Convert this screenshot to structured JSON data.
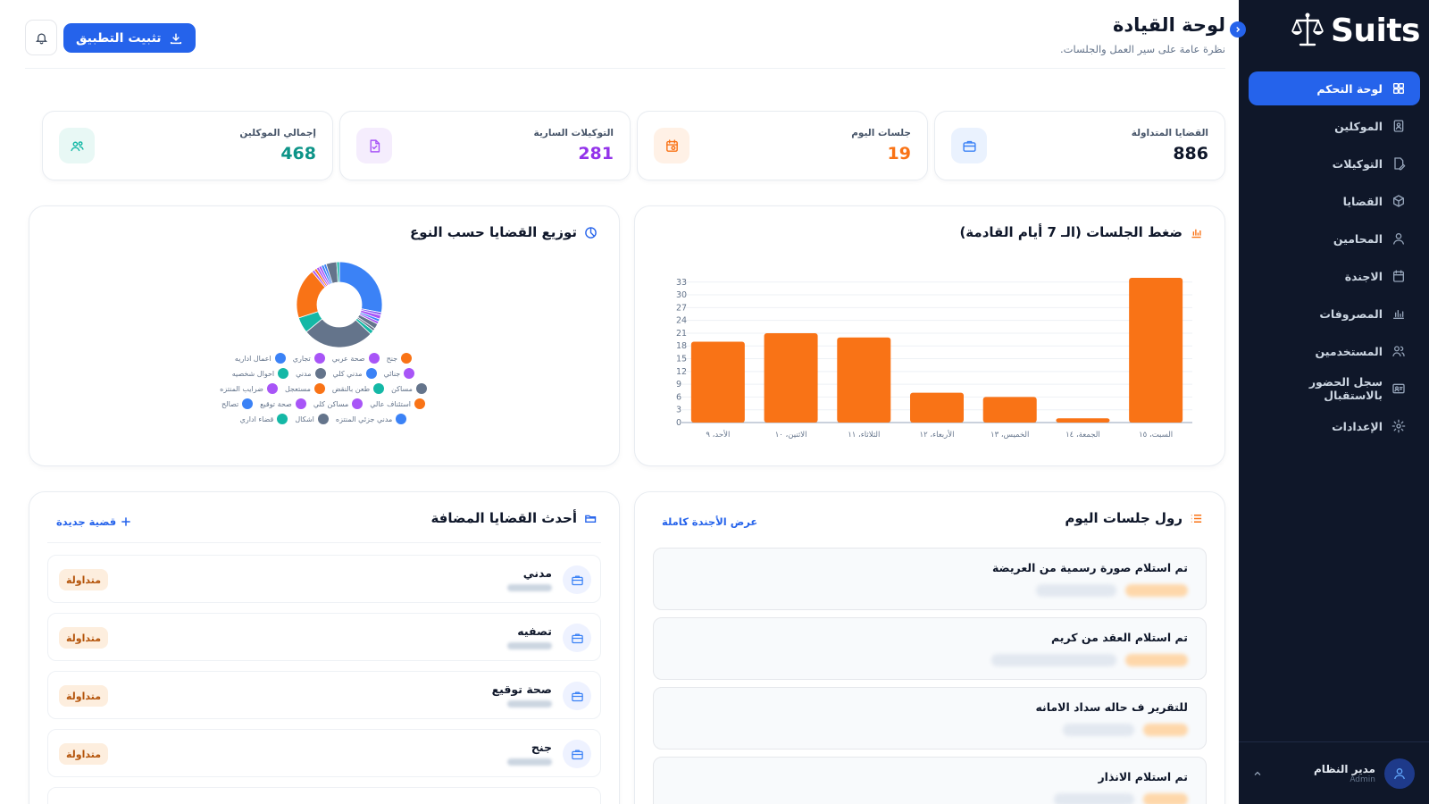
{
  "brand": {
    "name": "Suits"
  },
  "sidebar": {
    "items": [
      {
        "label": "لوحة التحكم",
        "icon": "dashboard-icon",
        "active": true
      },
      {
        "label": "الموكلين",
        "icon": "clients-icon"
      },
      {
        "label": "التوكيلات",
        "icon": "power-of-attorney-icon"
      },
      {
        "label": "القضايا",
        "icon": "cases-icon"
      },
      {
        "label": "المحامين",
        "icon": "lawyer-icon"
      },
      {
        "label": "الاجندة",
        "icon": "calendar-icon"
      },
      {
        "label": "المصروفات",
        "icon": "expenses-chart-icon"
      },
      {
        "label": "المستخدمين",
        "icon": "users-icon"
      },
      {
        "label": "سجل الحضور بالاستقبال",
        "icon": "attendance-icon"
      },
      {
        "label": "الإعدادات",
        "icon": "settings-gear-icon"
      }
    ],
    "user": {
      "name": "مدير النظام",
      "role": "Admin"
    }
  },
  "header": {
    "title": "لوحة القيادة",
    "subtitle": "نظرة عامة على سير العمل والجلسات.",
    "install_label": "تثبيت التطبيق"
  },
  "stats": [
    {
      "label": "القضايا المتداولة",
      "value": "886",
      "color": "#0f172a",
      "icon": "briefcase-icon",
      "icon_bg": "#eaf2fe",
      "icon_color": "#3b82f6"
    },
    {
      "label": "جلسات اليوم",
      "value": "19",
      "color": "#f97316",
      "icon": "calendar-clock-icon",
      "icon_bg": "#fff1e6",
      "icon_color": "#f97316"
    },
    {
      "label": "التوكيلات السارية",
      "value": "281",
      "color": "#9333ea",
      "icon": "document-icon",
      "icon_bg": "#f5edfd",
      "icon_color": "#a855f7"
    },
    {
      "label": "إجمالي الموكلين",
      "value": "468",
      "color": "#0d9488",
      "icon": "clients-group-icon",
      "icon_bg": "#e8f8f5",
      "icon_color": "#14b8a6"
    }
  ],
  "sessions_chart": {
    "title": "ضغط الجلسات (الـ 7 أيام القادمة)"
  },
  "types_chart": {
    "title": "توزيع القضايا حسب النوع"
  },
  "today_sessions": {
    "title": "رول جلسات اليوم",
    "link": "عرض الأجندة كاملة",
    "items": [
      {
        "title": "تم استلام صورة رسمية من العريضة"
      },
      {
        "title": "تم استلام العقد من كريم"
      },
      {
        "title": "للتقرير ف حاله سداد الامانه"
      },
      {
        "title": "تم استلام الانذار"
      }
    ]
  },
  "latest_cases": {
    "title": "أحدث القضايا المضافة",
    "link": "قضية جديدة",
    "items": [
      {
        "name": "مدني",
        "status": "متداولة"
      },
      {
        "name": "تصفيه",
        "status": "متداولة"
      },
      {
        "name": "صحة توقيع",
        "status": "متداولة"
      },
      {
        "name": "جنح",
        "status": "متداولة"
      }
    ]
  },
  "chart_data": [
    {
      "type": "bar",
      "categories": [
        "السبت، ١٥",
        "الجمعة، ١٤",
        "الخميس، ١٣",
        "الأربعاء، ١٢",
        "الثلاثاء، ١١",
        "الاثنين، ١٠",
        "الأحد، ٩"
      ],
      "values": [
        34,
        1,
        6,
        7,
        20,
        21,
        19
      ],
      "ylim": [
        0,
        33
      ],
      "yticks": [
        0,
        3,
        6,
        9,
        12,
        15,
        18,
        21,
        24,
        27,
        30,
        33
      ],
      "color": "#f97316",
      "grid": true
    },
    {
      "type": "pie",
      "labels": [
        "جنح",
        "صحة عربي",
        "تجاري",
        "اعمال اداريه",
        "جنائي",
        "مدني كلي",
        "مدني",
        "احوال شخصيه",
        "مساكن",
        "طعن بالنقض",
        "مستعجل",
        "ضرايب المنتزه",
        "استئناف عالي",
        "مساكن كلي",
        "صحة توقيع",
        "تصالح",
        "مدني جزئي المنتزه",
        "اشكال",
        "قضاء اداري"
      ],
      "values": [
        28,
        1,
        1.5,
        1,
        1,
        2,
        1,
        1.5,
        27,
        6,
        19,
        1,
        1,
        1,
        1,
        1,
        1,
        4,
        1
      ],
      "colors": [
        "#3b82f6",
        "#8b5cf6",
        "#a855f7",
        "#3b82f6",
        "#a855f7",
        "#64748b",
        "#64748b",
        "#14b8a6",
        "#64748b",
        "#14b8a6",
        "#f97316",
        "#a855f7",
        "#f97316",
        "#a855f7",
        "#a855f7",
        "#3b82f6",
        "#3b82f6",
        "#64748b",
        "#14b8a6"
      ],
      "legend_rows": [
        [
          [
            "جنح",
            "#f97316"
          ],
          [
            "صحة عربي",
            "#a855f7"
          ],
          [
            "تجاري",
            "#a855f7"
          ],
          [
            "اعمال اداريه",
            "#3b82f6"
          ]
        ],
        [
          [
            "جنائي",
            "#a855f7"
          ],
          [
            "مدني كلي",
            "#3b82f6"
          ],
          [
            "مدني",
            "#64748b"
          ],
          [
            "احوال شخصيه",
            "#14b8a6"
          ]
        ],
        [
          [
            "مساكن",
            "#64748b"
          ],
          [
            "طعن بالنقض",
            "#14b8a6"
          ],
          [
            "مستعجل",
            "#f97316"
          ],
          [
            "ضرايب المنتزه",
            "#a855f7"
          ]
        ],
        [
          [
            "استئناف عالي",
            "#f97316"
          ],
          [
            "مساكن كلي",
            "#a855f7"
          ],
          [
            "صحة توقيع",
            "#a855f7"
          ],
          [
            "تصالح",
            "#3b82f6"
          ]
        ],
        [
          [
            "مدني جزئي المنتزه",
            "#3b82f6"
          ],
          [
            "اشكال",
            "#64748b"
          ],
          [
            "قضاء اداري",
            "#14b8a6"
          ]
        ]
      ]
    }
  ]
}
